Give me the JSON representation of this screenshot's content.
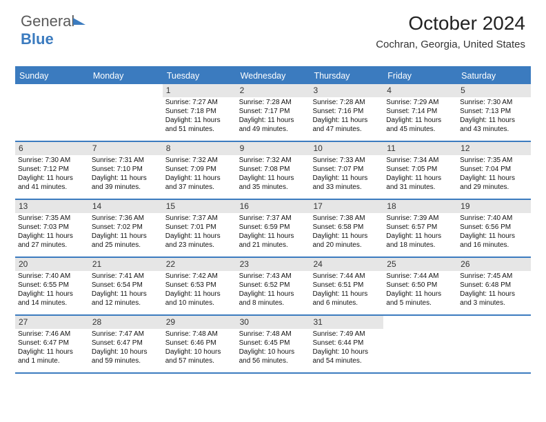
{
  "logo": {
    "text1": "General",
    "text2": "Blue"
  },
  "title": "October 2024",
  "subtitle": "Cochran, Georgia, United States",
  "colors": {
    "accent": "#3b7bbf",
    "header_bg": "#3b7bbf",
    "header_text": "#ffffff",
    "daynum_bg": "#e6e6e6",
    "text": "#111111",
    "background": "#ffffff"
  },
  "day_headers": [
    "Sunday",
    "Monday",
    "Tuesday",
    "Wednesday",
    "Thursday",
    "Friday",
    "Saturday"
  ],
  "weeks": [
    [
      {
        "empty": true
      },
      {
        "empty": true
      },
      {
        "n": "1",
        "sr": "7:27 AM",
        "ss": "7:18 PM",
        "dl": "11 hours and 51 minutes."
      },
      {
        "n": "2",
        "sr": "7:28 AM",
        "ss": "7:17 PM",
        "dl": "11 hours and 49 minutes."
      },
      {
        "n": "3",
        "sr": "7:28 AM",
        "ss": "7:16 PM",
        "dl": "11 hours and 47 minutes."
      },
      {
        "n": "4",
        "sr": "7:29 AM",
        "ss": "7:14 PM",
        "dl": "11 hours and 45 minutes."
      },
      {
        "n": "5",
        "sr": "7:30 AM",
        "ss": "7:13 PM",
        "dl": "11 hours and 43 minutes."
      }
    ],
    [
      {
        "n": "6",
        "sr": "7:30 AM",
        "ss": "7:12 PM",
        "dl": "11 hours and 41 minutes."
      },
      {
        "n": "7",
        "sr": "7:31 AM",
        "ss": "7:10 PM",
        "dl": "11 hours and 39 minutes."
      },
      {
        "n": "8",
        "sr": "7:32 AM",
        "ss": "7:09 PM",
        "dl": "11 hours and 37 minutes."
      },
      {
        "n": "9",
        "sr": "7:32 AM",
        "ss": "7:08 PM",
        "dl": "11 hours and 35 minutes."
      },
      {
        "n": "10",
        "sr": "7:33 AM",
        "ss": "7:07 PM",
        "dl": "11 hours and 33 minutes."
      },
      {
        "n": "11",
        "sr": "7:34 AM",
        "ss": "7:05 PM",
        "dl": "11 hours and 31 minutes."
      },
      {
        "n": "12",
        "sr": "7:35 AM",
        "ss": "7:04 PM",
        "dl": "11 hours and 29 minutes."
      }
    ],
    [
      {
        "n": "13",
        "sr": "7:35 AM",
        "ss": "7:03 PM",
        "dl": "11 hours and 27 minutes."
      },
      {
        "n": "14",
        "sr": "7:36 AM",
        "ss": "7:02 PM",
        "dl": "11 hours and 25 minutes."
      },
      {
        "n": "15",
        "sr": "7:37 AM",
        "ss": "7:01 PM",
        "dl": "11 hours and 23 minutes."
      },
      {
        "n": "16",
        "sr": "7:37 AM",
        "ss": "6:59 PM",
        "dl": "11 hours and 21 minutes."
      },
      {
        "n": "17",
        "sr": "7:38 AM",
        "ss": "6:58 PM",
        "dl": "11 hours and 20 minutes."
      },
      {
        "n": "18",
        "sr": "7:39 AM",
        "ss": "6:57 PM",
        "dl": "11 hours and 18 minutes."
      },
      {
        "n": "19",
        "sr": "7:40 AM",
        "ss": "6:56 PM",
        "dl": "11 hours and 16 minutes."
      }
    ],
    [
      {
        "n": "20",
        "sr": "7:40 AM",
        "ss": "6:55 PM",
        "dl": "11 hours and 14 minutes."
      },
      {
        "n": "21",
        "sr": "7:41 AM",
        "ss": "6:54 PM",
        "dl": "11 hours and 12 minutes."
      },
      {
        "n": "22",
        "sr": "7:42 AM",
        "ss": "6:53 PM",
        "dl": "11 hours and 10 minutes."
      },
      {
        "n": "23",
        "sr": "7:43 AM",
        "ss": "6:52 PM",
        "dl": "11 hours and 8 minutes."
      },
      {
        "n": "24",
        "sr": "7:44 AM",
        "ss": "6:51 PM",
        "dl": "11 hours and 6 minutes."
      },
      {
        "n": "25",
        "sr": "7:44 AM",
        "ss": "6:50 PM",
        "dl": "11 hours and 5 minutes."
      },
      {
        "n": "26",
        "sr": "7:45 AM",
        "ss": "6:48 PM",
        "dl": "11 hours and 3 minutes."
      }
    ],
    [
      {
        "n": "27",
        "sr": "7:46 AM",
        "ss": "6:47 PM",
        "dl": "11 hours and 1 minute."
      },
      {
        "n": "28",
        "sr": "7:47 AM",
        "ss": "6:47 PM",
        "dl": "10 hours and 59 minutes."
      },
      {
        "n": "29",
        "sr": "7:48 AM",
        "ss": "6:46 PM",
        "dl": "10 hours and 57 minutes."
      },
      {
        "n": "30",
        "sr": "7:48 AM",
        "ss": "6:45 PM",
        "dl": "10 hours and 56 minutes."
      },
      {
        "n": "31",
        "sr": "7:49 AM",
        "ss": "6:44 PM",
        "dl": "10 hours and 54 minutes."
      },
      {
        "empty": true
      },
      {
        "empty": true
      }
    ]
  ],
  "labels": {
    "sunrise": "Sunrise:",
    "sunset": "Sunset:",
    "daylight": "Daylight:"
  }
}
